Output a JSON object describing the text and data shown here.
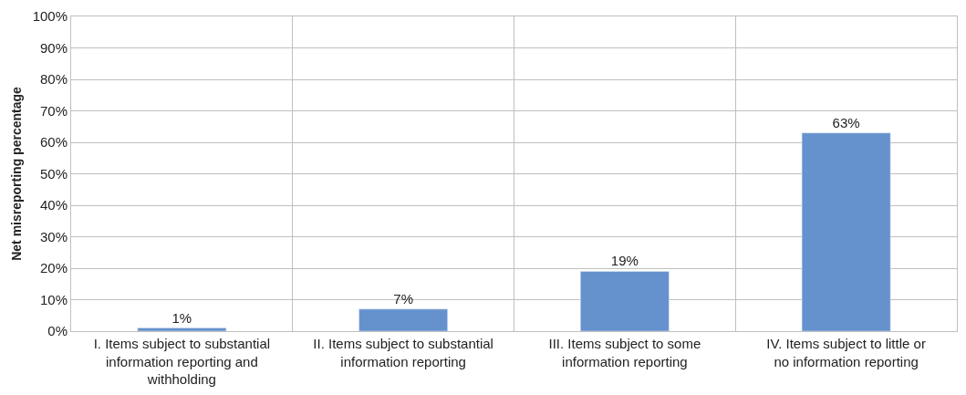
{
  "chart_data": {
    "type": "bar",
    "ylabel": "Net misreporting percentage",
    "categories": [
      "I. Items subject to substantial information reporting and withholding",
      "II. Items subject to substantial information reporting",
      "III. Items subject to some information reporting",
      "IV. Items subject to little or no information reporting"
    ],
    "values": [
      1,
      7,
      19,
      63
    ],
    "color": "#6592cd",
    "ylim": [
      0,
      100
    ],
    "yticks": [
      {
        "value": 0,
        "label": "0%"
      },
      {
        "value": 10,
        "label": "10%"
      },
      {
        "value": 20,
        "label": "20%"
      },
      {
        "value": 30,
        "label": "30%"
      },
      {
        "value": 40,
        "label": "40%"
      },
      {
        "value": 50,
        "label": "50%"
      },
      {
        "value": 60,
        "label": "60%"
      },
      {
        "value": 70,
        "label": "70%"
      },
      {
        "value": 80,
        "label": "80%"
      },
      {
        "value": 90,
        "label": "90%"
      },
      {
        "value": 100,
        "label": "100%"
      }
    ],
    "value_labels": [
      "1%",
      "7%",
      "19%",
      "63%"
    ],
    "grid": true
  }
}
